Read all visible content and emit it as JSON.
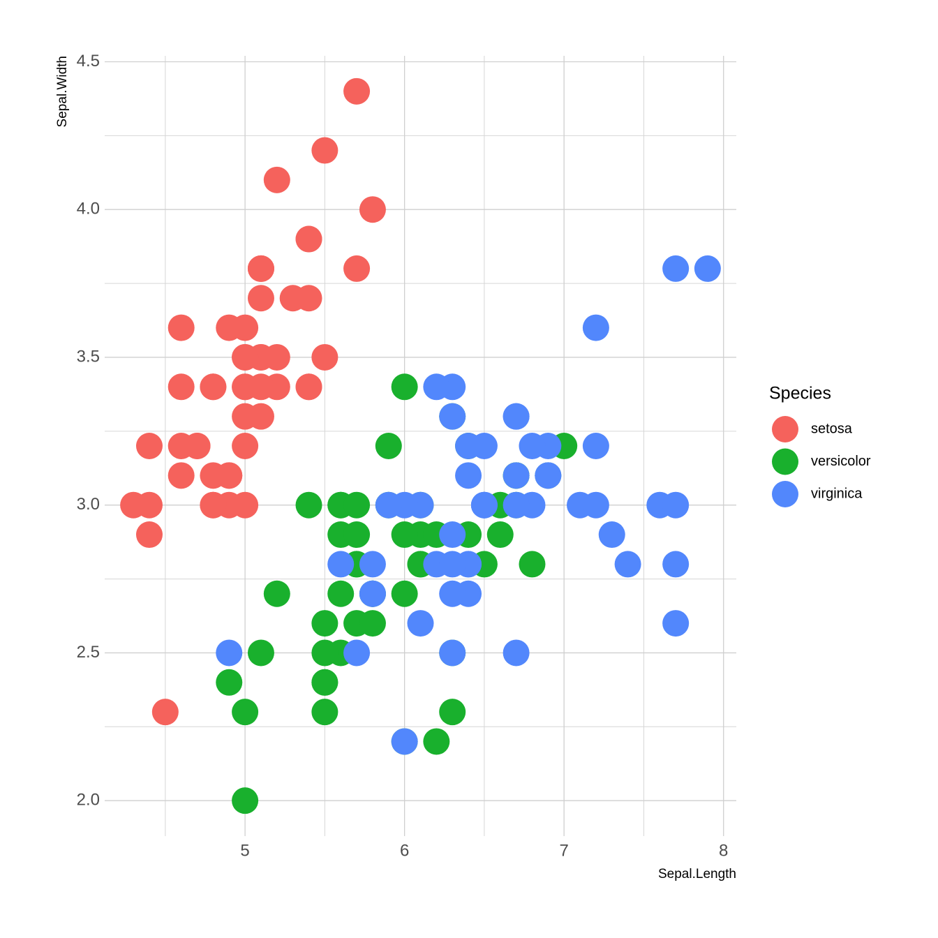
{
  "chart_data": {
    "type": "scatter",
    "x_label": "Sepal.Length",
    "y_label": "Sepal.Width",
    "legend_title": "Species",
    "legend_position": "right",
    "xlim": [
      4.12,
      8.08
    ],
    "ylim": [
      1.88,
      4.52
    ],
    "xticks": [
      5,
      6,
      7,
      8
    ],
    "yticks": [
      {
        "value": 2,
        "label": "2.0"
      },
      2.5,
      {
        "value": 3,
        "label": "3.0"
      },
      3.5,
      {
        "value": 4,
        "label": "4.0"
      },
      4.5
    ],
    "x_minor_grid": [
      4.5,
      5.5,
      6.5,
      7.5
    ],
    "y_minor_grid": [
      2.25,
      2.75,
      3.25,
      3.75,
      4.25
    ],
    "grid": true,
    "series": [
      {
        "name": "setosa",
        "color": "#F5625C",
        "x": [
          5.1,
          4.9,
          4.7,
          4.6,
          5.0,
          5.4,
          4.6,
          5.0,
          4.4,
          4.9,
          5.4,
          4.8,
          4.8,
          4.3,
          5.8,
          5.7,
          5.4,
          5.1,
          5.7,
          5.1,
          5.4,
          5.1,
          4.6,
          5.1,
          4.8,
          5.0,
          5.0,
          5.2,
          5.2,
          4.7,
          4.8,
          5.4,
          5.2,
          5.5,
          4.9,
          5.0,
          5.5,
          4.9,
          4.4,
          5.1,
          5.0,
          4.5,
          4.4,
          5.0,
          5.1,
          4.8,
          5.1,
          4.6,
          5.3,
          5.0
        ],
        "values": [
          3.5,
          3.0,
          3.2,
          3.1,
          3.6,
          3.9,
          3.4,
          3.4,
          2.9,
          3.1,
          3.7,
          3.4,
          3.0,
          3.0,
          4.0,
          4.4,
          3.9,
          3.5,
          3.8,
          3.8,
          3.4,
          3.7,
          3.6,
          3.3,
          3.4,
          3.0,
          3.4,
          3.5,
          3.4,
          3.2,
          3.1,
          3.4,
          4.1,
          4.2,
          3.1,
          3.2,
          3.5,
          3.6,
          3.0,
          3.4,
          3.5,
          2.3,
          3.2,
          3.5,
          3.8,
          3.0,
          3.8,
          3.2,
          3.7,
          3.3
        ]
      },
      {
        "name": "versicolor",
        "color": "#19B02D",
        "x": [
          7.0,
          6.4,
          6.9,
          5.5,
          6.5,
          5.7,
          6.3,
          4.9,
          6.6,
          5.2,
          5.0,
          5.9,
          6.0,
          6.1,
          5.6,
          6.7,
          5.6,
          5.8,
          6.2,
          5.6,
          5.9,
          6.1,
          6.3,
          6.1,
          6.4,
          6.6,
          6.8,
          6.7,
          6.0,
          5.7,
          5.5,
          5.5,
          5.8,
          6.0,
          5.4,
          6.0,
          6.7,
          6.3,
          5.6,
          5.5,
          5.5,
          6.1,
          5.8,
          5.0,
          5.6,
          5.7,
          5.7,
          6.2,
          5.1,
          5.7
        ],
        "values": [
          3.2,
          3.2,
          3.1,
          2.3,
          2.8,
          2.8,
          3.3,
          2.4,
          2.9,
          2.7,
          2.0,
          3.0,
          2.2,
          2.9,
          2.9,
          3.1,
          3.0,
          2.7,
          2.2,
          2.5,
          3.2,
          2.8,
          2.5,
          2.8,
          2.9,
          3.0,
          2.8,
          3.0,
          2.9,
          2.6,
          2.4,
          2.4,
          2.7,
          2.7,
          3.0,
          3.4,
          3.1,
          2.3,
          3.0,
          2.5,
          2.6,
          3.0,
          2.6,
          2.3,
          2.7,
          3.0,
          2.9,
          2.9,
          2.5,
          2.8
        ]
      },
      {
        "name": "virginica",
        "color": "#5287FC",
        "x": [
          6.3,
          5.8,
          7.1,
          6.3,
          6.5,
          7.6,
          4.9,
          7.3,
          6.7,
          7.2,
          6.5,
          6.4,
          6.8,
          5.7,
          5.8,
          6.4,
          6.5,
          7.7,
          7.7,
          6.0,
          6.9,
          5.6,
          7.7,
          6.3,
          6.7,
          7.2,
          6.2,
          6.1,
          6.4,
          7.2,
          7.4,
          7.9,
          6.4,
          6.3,
          6.1,
          7.7,
          6.3,
          6.4,
          6.0,
          6.9,
          6.7,
          6.9,
          5.8,
          6.8,
          6.7,
          6.7,
          6.3,
          6.5,
          6.2,
          5.9
        ],
        "values": [
          3.3,
          2.7,
          3.0,
          2.9,
          3.0,
          3.0,
          2.5,
          2.9,
          2.5,
          3.6,
          3.2,
          2.7,
          3.0,
          2.5,
          2.8,
          3.2,
          3.0,
          3.8,
          2.6,
          2.2,
          3.2,
          2.8,
          2.8,
          2.7,
          3.3,
          3.2,
          2.8,
          3.0,
          2.8,
          3.0,
          2.8,
          3.8,
          2.8,
          2.8,
          2.6,
          3.0,
          3.4,
          3.1,
          3.0,
          3.1,
          3.1,
          3.1,
          2.7,
          3.2,
          3.3,
          3.0,
          2.5,
          3.0,
          3.4,
          3.0
        ]
      }
    ]
  }
}
